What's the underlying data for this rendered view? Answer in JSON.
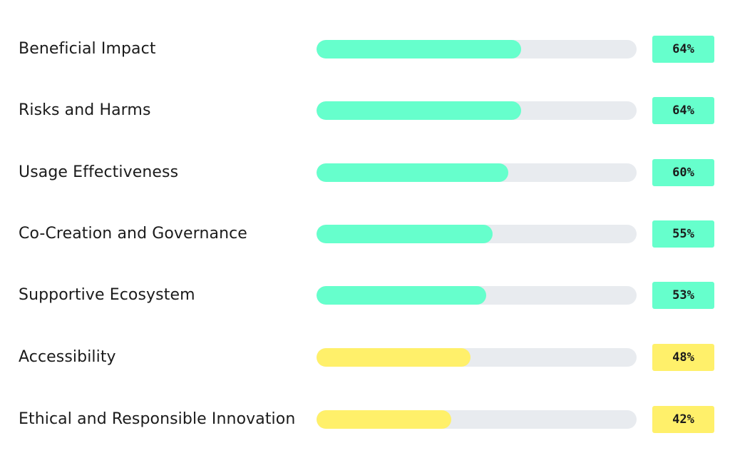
{
  "colors": {
    "high": "#66ffcc",
    "mid": "#fff06a",
    "track": "#e8ebef"
  },
  "chart_data": {
    "type": "bar",
    "orientation": "horizontal",
    "categories": [
      "Beneficial Impact",
      "Risks and Harms",
      "Usage Effectiveness",
      "Co-Creation and Governance",
      "Supportive Ecosystem",
      "Accessibility",
      "Ethical and Responsible Innovation"
    ],
    "values": [
      64,
      64,
      60,
      55,
      53,
      48,
      42
    ],
    "value_labels": [
      "64%",
      "64%",
      "60%",
      "55%",
      "53%",
      "48%",
      "42%"
    ],
    "bar_colors": [
      "high",
      "high",
      "high",
      "high",
      "high",
      "mid",
      "mid"
    ],
    "xlim": [
      0,
      100
    ],
    "title": "",
    "xlabel": "",
    "ylabel": "",
    "grid": false,
    "legend": "none"
  }
}
